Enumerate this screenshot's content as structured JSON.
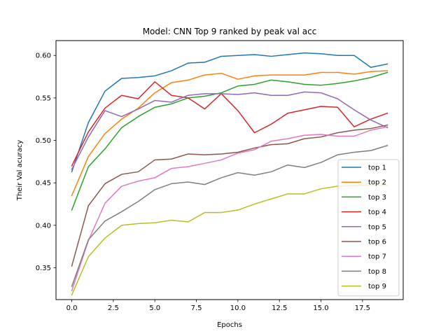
{
  "chart_data": {
    "type": "line",
    "title": "Model: CNN Top 9 ranked by peak val acc",
    "xlabel": "Epochs",
    "ylabel": "Their Val acuracy",
    "xlim": [
      -0.95,
      19.95
    ],
    "ylim": [
      0.3125,
      0.6175
    ],
    "xticks": [
      0.0,
      2.5,
      5.0,
      7.5,
      10.0,
      12.5,
      15.0,
      17.5
    ],
    "xtick_labels": [
      "0.0",
      "2.5",
      "5.0",
      "7.5",
      "10.0",
      "12.5",
      "15.0",
      "17.5"
    ],
    "yticks": [
      0.35,
      0.4,
      0.45,
      0.5,
      0.55,
      0.6
    ],
    "ytick_labels": [
      "0.35",
      "0.40",
      "0.45",
      "0.50",
      "0.55",
      "0.60"
    ],
    "grid": false,
    "legend_position": "lower-right",
    "x": [
      0,
      1,
      2,
      3,
      4,
      5,
      6,
      7,
      8,
      9,
      10,
      11,
      12,
      13,
      14,
      15,
      16,
      17,
      18,
      19
    ],
    "series": [
      {
        "name": "top 1",
        "color": "#1f77b4",
        "values": [
          0.463,
          0.521,
          0.558,
          0.573,
          0.574,
          0.576,
          0.582,
          0.591,
          0.592,
          0.599,
          0.6,
          0.601,
          0.599,
          0.601,
          0.603,
          0.602,
          0.6,
          0.6,
          0.586,
          0.59
        ]
      },
      {
        "name": "top 2",
        "color": "#ff7f0e",
        "values": [
          0.435,
          0.481,
          0.508,
          0.525,
          0.538,
          0.556,
          0.568,
          0.571,
          0.577,
          0.579,
          0.572,
          0.576,
          0.577,
          0.577,
          0.577,
          0.58,
          0.58,
          0.578,
          0.581,
          0.582
        ]
      },
      {
        "name": "top 3",
        "color": "#2ca02c",
        "values": [
          0.418,
          0.469,
          0.49,
          0.515,
          0.528,
          0.539,
          0.543,
          0.55,
          0.552,
          0.556,
          0.564,
          0.566,
          0.571,
          0.569,
          0.566,
          0.565,
          0.567,
          0.57,
          0.574,
          0.58
        ]
      },
      {
        "name": "top 4",
        "color": "#d62728",
        "values": [
          0.47,
          0.51,
          0.538,
          0.553,
          0.549,
          0.569,
          0.553,
          0.55,
          0.537,
          0.555,
          0.535,
          0.509,
          0.519,
          0.532,
          0.536,
          0.54,
          0.539,
          0.516,
          0.525,
          0.532
        ]
      },
      {
        "name": "top 5",
        "color": "#9467bd",
        "values": [
          0.466,
          0.504,
          0.535,
          0.528,
          0.537,
          0.547,
          0.545,
          0.553,
          0.555,
          0.555,
          0.554,
          0.556,
          0.553,
          0.553,
          0.557,
          0.556,
          0.549,
          0.536,
          0.524,
          0.515
        ]
      },
      {
        "name": "top 6",
        "color": "#8c564b",
        "values": [
          0.352,
          0.423,
          0.449,
          0.46,
          0.463,
          0.477,
          0.478,
          0.484,
          0.483,
          0.484,
          0.486,
          0.491,
          0.495,
          0.496,
          0.502,
          0.504,
          0.509,
          0.512,
          0.514,
          0.518
        ]
      },
      {
        "name": "top 7",
        "color": "#e377c2",
        "values": [
          0.323,
          0.382,
          0.426,
          0.446,
          0.452,
          0.456,
          0.467,
          0.469,
          0.473,
          0.477,
          0.485,
          0.489,
          0.499,
          0.502,
          0.506,
          0.507,
          0.505,
          0.505,
          0.512,
          0.516
        ]
      },
      {
        "name": "top 8",
        "color": "#7f7f7f",
        "values": [
          0.328,
          0.383,
          0.405,
          0.416,
          0.428,
          0.442,
          0.449,
          0.451,
          0.448,
          0.456,
          0.462,
          0.459,
          0.463,
          0.471,
          0.468,
          0.474,
          0.483,
          0.486,
          0.488,
          0.494
        ]
      },
      {
        "name": "top 9",
        "color": "#bcbd22",
        "values": [
          0.318,
          0.363,
          0.385,
          0.4,
          0.402,
          0.403,
          0.406,
          0.404,
          0.415,
          0.415,
          0.418,
          0.425,
          0.431,
          0.437,
          0.437,
          0.443,
          0.446,
          0.447,
          0.447,
          0.447
        ]
      }
    ]
  }
}
